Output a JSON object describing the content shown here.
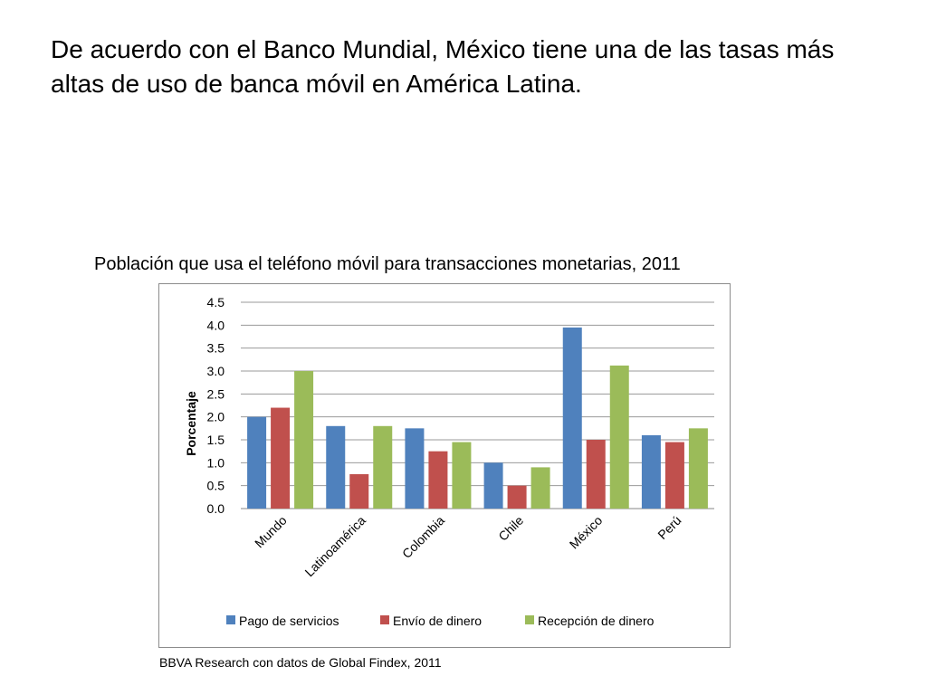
{
  "slide": {
    "title": "De acuerdo con el Banco Mundial, México tiene una de las tasas más altas de uso de banca móvil en América Latina.",
    "chart_title": "Población que usa el teléfono móvil para transacciones monetarias, 2011",
    "source": "BBVA Research con datos de Global Findex, 2011"
  },
  "chart_data": {
    "type": "bar",
    "title": "Población que usa el teléfono móvil para transacciones monetarias, 2011",
    "xlabel": "",
    "ylabel": "Porcentaje",
    "categories": [
      "Mundo",
      "Latinoamérica",
      "Colombia",
      "Chile",
      "México",
      "Perú"
    ],
    "series": [
      {
        "name": "Pago de servicios",
        "color": "#4f81bd",
        "values": [
          2.0,
          1.8,
          1.75,
          1.0,
          3.95,
          1.6
        ]
      },
      {
        "name": "Envío de dinero",
        "color": "#c0504d",
        "values": [
          2.2,
          0.75,
          1.25,
          0.5,
          1.5,
          1.45
        ]
      },
      {
        "name": "Recepción de dinero",
        "color": "#9bbb59",
        "values": [
          3.0,
          1.8,
          1.45,
          0.9,
          3.12,
          1.75
        ]
      }
    ],
    "ylim": [
      0,
      4.5
    ],
    "yticks": [
      "0.0",
      "0.5",
      "1.0",
      "1.5",
      "2.0",
      "2.5",
      "3.0",
      "3.5",
      "4.0",
      "4.5"
    ],
    "grid": true,
    "legend": "bottom"
  }
}
